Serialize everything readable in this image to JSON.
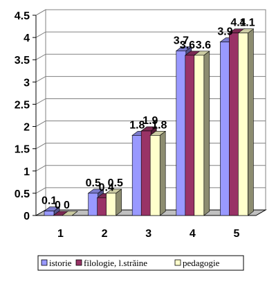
{
  "chart_data": {
    "type": "bar",
    "variant": "3d-clustered",
    "categories": [
      "1",
      "2",
      "3",
      "4",
      "5"
    ],
    "series": [
      {
        "name": "istorie",
        "values": [
          0.1,
          0.5,
          1.8,
          3.7,
          3.9
        ],
        "color": "#9999ff"
      },
      {
        "name": "filologie, l.străine",
        "values": [
          0,
          0.4,
          1.9,
          3.6,
          4.1
        ],
        "color": "#993366"
      },
      {
        "name": "pedagogie",
        "values": [
          0,
          0.5,
          1.8,
          3.6,
          4.1
        ],
        "color": "#ffffcc"
      }
    ],
    "yticks": [
      "0",
      "0.5",
      "1",
      "1.5",
      "2",
      "2.5",
      "3",
      "3.5",
      "4",
      "4.5"
    ],
    "ylim": [
      0,
      4.5
    ],
    "title": "",
    "xlabel": "",
    "ylabel": "",
    "grid": true,
    "legend_position": "bottom"
  }
}
